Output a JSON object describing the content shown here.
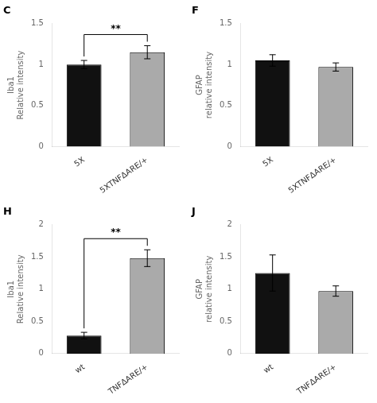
{
  "chart_data": [
    {
      "type": "bar",
      "title": "C",
      "categories": [
        "5X",
        "5XTNFΔARE/+"
      ],
      "values": [
        1.0,
        1.15
      ],
      "errors": [
        0.05,
        0.08
      ],
      "colors": [
        "#111111",
        "#aaaaaa"
      ],
      "y_label": "Iba1\nRelative intensity",
      "ylim": [
        0,
        1.5
      ],
      "yticks": [
        0,
        0.5,
        1,
        1.5
      ],
      "grid": false,
      "annotations": [
        {
          "text": "**",
          "between": [
            "5X",
            "5XTNFΔARE/+"
          ]
        }
      ]
    },
    {
      "type": "bar",
      "title": "F",
      "categories": [
        "5X",
        "5XTNFΔARE/+"
      ],
      "values": [
        1.05,
        0.97
      ],
      "errors": [
        0.07,
        0.05
      ],
      "colors": [
        "#111111",
        "#aaaaaa"
      ],
      "y_label": "GFAP\nrelative intensity",
      "ylim": [
        0,
        1.5
      ],
      "yticks": [
        0,
        0.5,
        1,
        1.5
      ],
      "grid": false
    },
    {
      "type": "bar",
      "title": "H",
      "categories": [
        "wt",
        "TNFΔARE/+"
      ],
      "values": [
        0.28,
        1.48
      ],
      "errors": [
        0.05,
        0.13
      ],
      "colors": [
        "#111111",
        "#aaaaaa"
      ],
      "y_label": "Iba1\nRelative intensity",
      "ylim": [
        0,
        2.0
      ],
      "yticks": [
        0,
        0.5,
        1,
        1.5,
        2
      ],
      "grid": false,
      "annotations": [
        {
          "text": "**",
          "between": [
            "wt",
            "TNFΔARE/+"
          ]
        }
      ]
    },
    {
      "type": "bar",
      "title": "J",
      "categories": [
        "wt",
        "TNFΔARE/+"
      ],
      "values": [
        1.25,
        0.97
      ],
      "errors": [
        0.28,
        0.08
      ],
      "colors": [
        "#111111",
        "#aaaaaa"
      ],
      "y_label": "GFAP\nrelative intensity",
      "ylim": [
        0,
        2.0
      ],
      "yticks": [
        0,
        0.5,
        1,
        1.5,
        2
      ],
      "grid": false
    }
  ]
}
